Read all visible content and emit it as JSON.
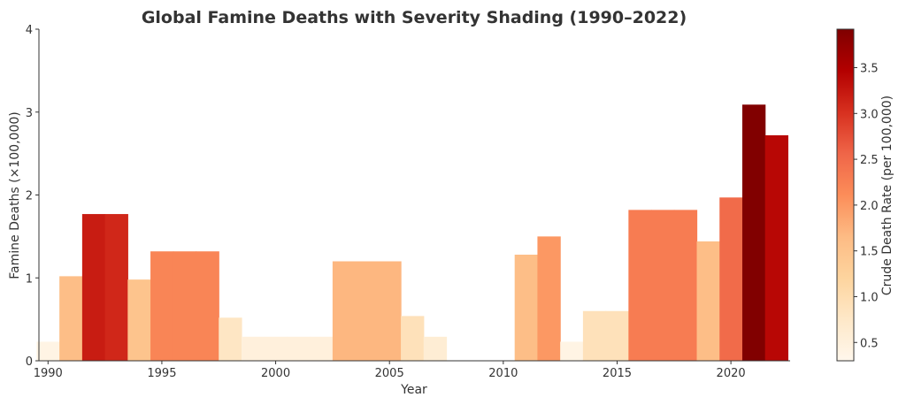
{
  "chart_data": {
    "type": "bar",
    "title": "Global Famine Deaths with Severity Shading (1990–2022)",
    "xlabel": "Year",
    "ylabel": "Famine Deaths (×100,000)",
    "xlim": [
      1989.6,
      2022.6
    ],
    "ylim": [
      0,
      4
    ],
    "x_ticks": [
      "1990",
      "1995",
      "2000",
      "2005",
      "2010",
      "2015",
      "2020"
    ],
    "y_ticks": [
      "0",
      "1",
      "2",
      "3",
      "4"
    ],
    "grid": false,
    "series": [
      {
        "years": [
          1990,
          1991,
          1992,
          1993,
          1994,
          1995,
          1996,
          1997,
          1998,
          1999,
          2000,
          2001,
          2002,
          2003,
          2004,
          2005,
          2006,
          2007,
          2008,
          2009,
          2010,
          2011,
          2012,
          2013,
          2014,
          2015,
          2016,
          2017,
          2018,
          2019,
          2020,
          2021,
          2022
        ],
        "values": [
          0.23,
          1.02,
          1.77,
          1.77,
          0.98,
          1.32,
          1.32,
          1.32,
          0.52,
          0.29,
          0.29,
          0.29,
          0.29,
          1.2,
          1.2,
          1.2,
          0.54,
          0.29,
          0,
          0,
          0,
          1.28,
          1.5,
          0.23,
          0.6,
          0.6,
          1.82,
          1.82,
          1.82,
          1.44,
          1.97,
          3.09,
          2.72
        ],
        "crude_death_rate": [
          0.4,
          1.6,
          3.2,
          3.1,
          1.5,
          2.2,
          2.2,
          2.2,
          0.8,
          0.5,
          0.5,
          0.5,
          0.5,
          1.7,
          1.7,
          1.7,
          0.9,
          0.6,
          0,
          0,
          0,
          1.6,
          2.0,
          0.4,
          0.9,
          0.9,
          2.3,
          2.3,
          2.3,
          1.6,
          2.5,
          3.9,
          3.4
        ]
      }
    ],
    "colorbar": {
      "label": "Crude Death Rate (per 100,000)",
      "range": [
        0.3,
        3.92
      ],
      "ticks": [
        "0.5",
        "1.0",
        "1.5",
        "2.0",
        "2.5",
        "3.0",
        "3.5"
      ],
      "colormap": "OrRd",
      "colors": [
        "#fff7ec",
        "#fee8c8",
        "#fdd49e",
        "#fdbb84",
        "#fc8d59",
        "#ef6548",
        "#d7301f",
        "#b30000",
        "#7f0000"
      ]
    }
  }
}
